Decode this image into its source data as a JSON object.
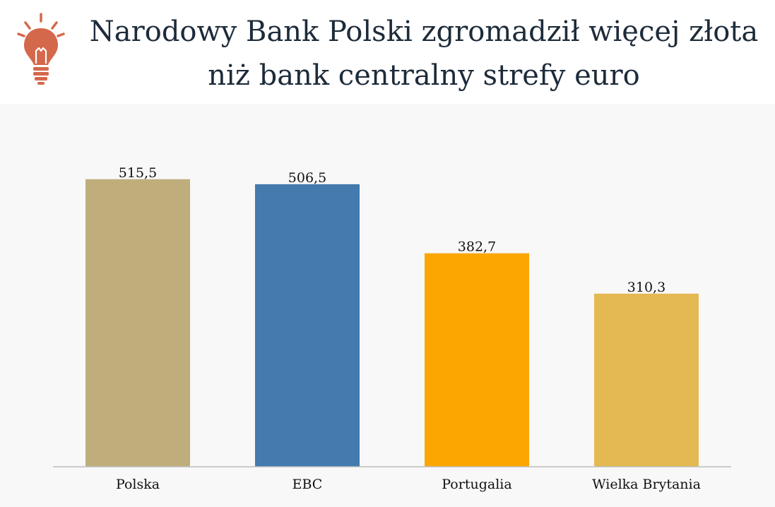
{
  "header": {
    "title_line1": "Narodowy Bank Polski zgromadził więcej złota",
    "title_line2": "niż bank centralny strefy euro",
    "icon": "lightbulb-icon",
    "icon_color": "#d4684a"
  },
  "chart_data": {
    "type": "bar",
    "title": "Narodowy Bank Polski zgromadził więcej złota niż bank centralny strefy euro",
    "xlabel": "",
    "ylabel": "",
    "categories": [
      "Polska",
      "EBC",
      "Portugalia",
      "Wielka Brytania"
    ],
    "values": [
      515.5,
      506.5,
      382.7,
      310.3
    ],
    "value_labels": [
      "515,5",
      "506,5",
      "382,7",
      "310,3"
    ],
    "colors": [
      "#bfae7c",
      "#447aad",
      "#fba601",
      "#e4b952"
    ],
    "ylim": [
      0,
      600
    ],
    "grid": false,
    "legend": "none"
  }
}
